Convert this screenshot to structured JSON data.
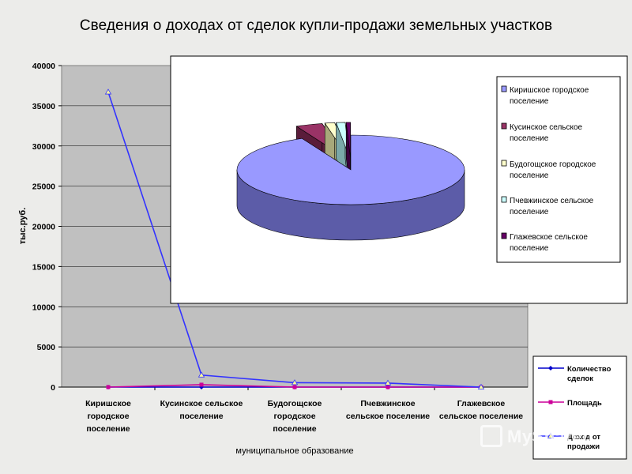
{
  "title": "Сведения о доходах от сделок купли-продажи земельных участков",
  "chart_data": [
    {
      "type": "line",
      "ylabel": "тыс.руб.",
      "xlabel": "муниципальное образование",
      "ylim": [
        0,
        40000
      ],
      "yticks": [
        0,
        5000,
        10000,
        15000,
        20000,
        25000,
        30000,
        35000,
        40000
      ],
      "categories": [
        "Киришское городское поселение",
        "Кусинское сельское поселение",
        "Будогощское городское поселение",
        "Пчевжинское сельское поселение",
        "Глажевское сельское поселение"
      ],
      "category_lines": [
        [
          "Киришское",
          "городское",
          "поселение"
        ],
        [
          "Кусинское сельское",
          "поселение"
        ],
        [
          "Будогощское",
          "городское",
          "поселение"
        ],
        [
          "Пчевжинское",
          "сельское поселение"
        ],
        [
          "Глажевское",
          "сельское поселение"
        ]
      ],
      "series": [
        {
          "name": "Количество сделок",
          "name_lines": [
            "Количество",
            "сделок"
          ],
          "color": "#0000cc",
          "marker": "diamond",
          "values": [
            0,
            0,
            0,
            0,
            0
          ]
        },
        {
          "name": "Площадь",
          "name_lines": [
            "Площадь"
          ],
          "color": "#cc0099",
          "marker": "square",
          "values": [
            0,
            300,
            0,
            0,
            0
          ]
        },
        {
          "name": "Доход от продажи",
          "name_lines": [
            "Доход от",
            "продажи"
          ],
          "color": "#3333ff",
          "marker": "triangle",
          "values": [
            36700,
            1500,
            550,
            500,
            0
          ]
        }
      ],
      "plot_bg": "#c0c0c0",
      "grid": true,
      "legend": "bottom-right"
    },
    {
      "type": "pie",
      "style": "3d-exploded",
      "categories": [
        "Киришское городское поселение",
        "Кусинское сельское поселение",
        "Будогощское городское поселение",
        "Пчевжинское сельское поселение",
        "Глажевское сельское поселение"
      ],
      "category_lines": [
        [
          "Киришское городское",
          "поселение"
        ],
        [
          "Кусинское сельское",
          "поселение"
        ],
        [
          "Будогощское городское",
          "поселение"
        ],
        [
          "Пчевжинское сельское",
          "поселение"
        ],
        [
          "Глажевское сельское",
          "поселение"
        ]
      ],
      "values": [
        36700,
        1500,
        550,
        500,
        0
      ],
      "colors": [
        "#9999ff",
        "#993366",
        "#ffffcc",
        "#ccffff",
        "#660066"
      ],
      "side_colors": [
        "#5c5ca8",
        "#5a1c3a",
        "#a8a87a",
        "#7aa8a8",
        "#3a003a"
      ],
      "legend": "right"
    }
  ],
  "watermark": "MyShared"
}
